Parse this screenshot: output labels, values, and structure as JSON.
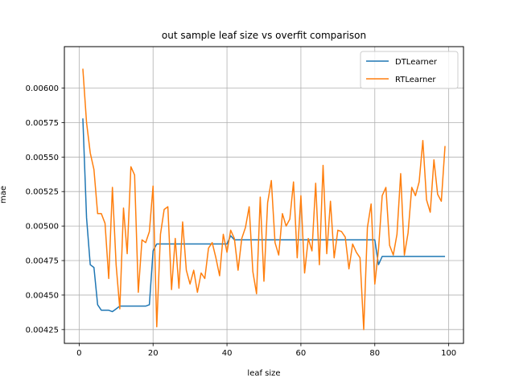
{
  "chart_data": {
    "type": "line",
    "title": "out sample leaf size vs overfit comparison",
    "xlabel": "leaf size",
    "ylabel": "mae",
    "xlim": [
      -4,
      104
    ],
    "ylim": [
      0.00415,
      0.0063
    ],
    "xticks": [
      0,
      20,
      40,
      60,
      80,
      100
    ],
    "yticks": [
      0.00425,
      0.0045,
      0.00475,
      0.005,
      0.00525,
      0.0055,
      0.00575,
      0.006
    ],
    "xtick_labels": [
      "0",
      "20",
      "40",
      "60",
      "80",
      "100"
    ],
    "ytick_labels": [
      "0.00425",
      "0.00450",
      "0.00475",
      "0.00500",
      "0.00525",
      "0.00550",
      "0.00575",
      "0.00600"
    ],
    "grid": true,
    "legend_position": "top-right",
    "x": [
      1,
      2,
      3,
      4,
      5,
      6,
      7,
      8,
      9,
      10,
      11,
      12,
      13,
      14,
      15,
      16,
      17,
      18,
      19,
      20,
      21,
      22,
      23,
      24,
      25,
      26,
      27,
      28,
      29,
      30,
      31,
      32,
      33,
      34,
      35,
      36,
      37,
      38,
      39,
      40,
      41,
      42,
      43,
      44,
      45,
      46,
      47,
      48,
      49,
      50,
      51,
      52,
      53,
      54,
      55,
      56,
      57,
      58,
      59,
      60,
      61,
      62,
      63,
      64,
      65,
      66,
      67,
      68,
      69,
      70,
      71,
      72,
      73,
      74,
      75,
      76,
      77,
      78,
      79,
      80,
      81,
      82,
      83,
      84,
      85,
      86,
      87,
      88,
      89,
      90,
      91,
      92,
      93,
      94,
      95,
      96,
      97,
      98,
      99
    ],
    "series": [
      {
        "name": "DTLearner",
        "color": "#1f77b4",
        "values": [
          0.00578,
          0.00506,
          0.00472,
          0.0047,
          0.00443,
          0.00439,
          0.00439,
          0.00439,
          0.00438,
          0.0044,
          0.00442,
          0.00442,
          0.00442,
          0.00442,
          0.00442,
          0.00442,
          0.00442,
          0.00442,
          0.00443,
          0.00482,
          0.00487,
          0.00487,
          0.00487,
          0.00487,
          0.00487,
          0.00487,
          0.00487,
          0.00487,
          0.00487,
          0.00487,
          0.00487,
          0.00487,
          0.00487,
          0.00487,
          0.00487,
          0.00487,
          0.00487,
          0.00487,
          0.00487,
          0.00487,
          0.00493,
          0.0049,
          0.0049,
          0.0049,
          0.0049,
          0.0049,
          0.0049,
          0.0049,
          0.0049,
          0.0049,
          0.0049,
          0.0049,
          0.0049,
          0.0049,
          0.0049,
          0.0049,
          0.0049,
          0.0049,
          0.0049,
          0.0049,
          0.0049,
          0.0049,
          0.0049,
          0.0049,
          0.0049,
          0.0049,
          0.0049,
          0.0049,
          0.0049,
          0.0049,
          0.0049,
          0.0049,
          0.0049,
          0.0049,
          0.0049,
          0.0049,
          0.0049,
          0.0049,
          0.0049,
          0.0049,
          0.00472,
          0.00478,
          0.00478,
          0.00478,
          0.00478,
          0.00478,
          0.00478,
          0.00478,
          0.00478,
          0.00478,
          0.00478,
          0.00478,
          0.00478,
          0.00478,
          0.00478,
          0.00478,
          0.00478,
          0.00478,
          0.00478
        ]
      },
      {
        "name": "RTLearner",
        "color": "#ff7f0e",
        "values": [
          0.00614,
          0.00575,
          0.00553,
          0.00541,
          0.00509,
          0.00509,
          0.00502,
          0.00462,
          0.00528,
          0.00472,
          0.0044,
          0.00513,
          0.0048,
          0.00543,
          0.00537,
          0.00452,
          0.0049,
          0.00488,
          0.00496,
          0.00529,
          0.00427,
          0.00494,
          0.00512,
          0.00514,
          0.00454,
          0.00491,
          0.00455,
          0.00503,
          0.00468,
          0.00458,
          0.00468,
          0.00452,
          0.00466,
          0.00462,
          0.00484,
          0.00488,
          0.00477,
          0.00464,
          0.00494,
          0.00481,
          0.00497,
          0.00491,
          0.00468,
          0.00491,
          0.00499,
          0.00514,
          0.00467,
          0.00451,
          0.00521,
          0.0046,
          0.00517,
          0.00533,
          0.00488,
          0.00479,
          0.00509,
          0.005,
          0.00505,
          0.00532,
          0.00477,
          0.00522,
          0.00466,
          0.00491,
          0.00482,
          0.00531,
          0.00472,
          0.00544,
          0.0048,
          0.00518,
          0.00477,
          0.00497,
          0.00496,
          0.00492,
          0.00469,
          0.00487,
          0.00481,
          0.00477,
          0.00425,
          0.00499,
          0.00516,
          0.00458,
          0.00483,
          0.00522,
          0.00528,
          0.00486,
          0.00479,
          0.00494,
          0.00538,
          0.00479,
          0.00495,
          0.00528,
          0.00522,
          0.00532,
          0.00562,
          0.00519,
          0.0051,
          0.00548,
          0.00523,
          0.00518,
          0.00558
        ]
      }
    ]
  }
}
